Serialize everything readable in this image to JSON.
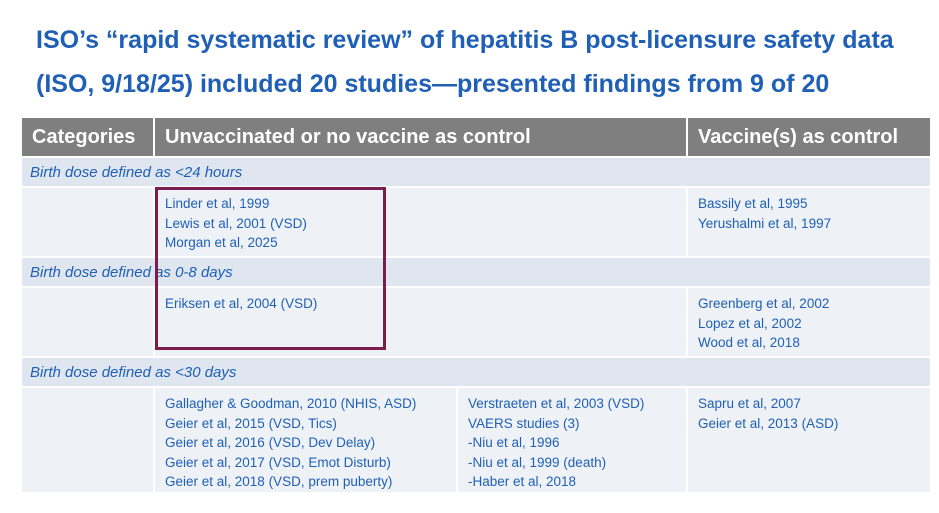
{
  "title": {
    "line1": "ISO’s “rapid systematic review” of hepatitis B post-licensure safety data",
    "line2": "(ISO, 9/18/25) included 20 studies—presented findings from 9 of 20"
  },
  "headers": {
    "categories": "Categories",
    "unvaccinated": "Unvaccinated or no vaccine as control",
    "vaccine": "Vaccine(s) as control"
  },
  "sections": [
    {
      "label": "Birth dose defined as <24 hours",
      "unvaccinated": [
        "Linder et al, 1999",
        "Lewis et al, 2001 (VSD)",
        "Morgan et al, 2025"
      ],
      "vaccine": [
        "Bassily et al, 1995",
        "Yerushalmi et al, 1997"
      ]
    },
    {
      "label": "Birth dose defined as 0-8 days",
      "unvaccinated": [
        "Eriksen et al, 2004 (VSD)"
      ],
      "vaccine": [
        "Greenberg et al, 2002",
        "Lopez et al, 2002",
        "Wood et al, 2018"
      ]
    },
    {
      "label": "Birth dose defined as <30 days",
      "unvaccinated_a": [
        "Gallagher & Goodman, 2010 (NHIS, ASD)",
        "Geier et al, 2015 (VSD, Tics)",
        "Geier et al, 2016 (VSD, Dev Delay)",
        "Geier et al, 2017 (VSD, Emot Disturb)",
        "Geier et al, 2018 (VSD, prem puberty)"
      ],
      "unvaccinated_b": [
        "Verstraeten et al, 2003 (VSD)",
        "VAERS studies (3)",
        "-Niu et al, 1996",
        "-Niu et al, 1999 (death)",
        "-Haber et al, 2018"
      ],
      "vaccine": [
        "Sapru et al, 2007",
        "Geier et al, 2013 (ASD)"
      ]
    }
  ],
  "colors": {
    "title": "#1f5fb5",
    "header_bg": "#7f7f7f",
    "section_bg": "#dfe6f0",
    "row_bg": "#eef2f7",
    "highlight_box": "#7b1c4e"
  }
}
